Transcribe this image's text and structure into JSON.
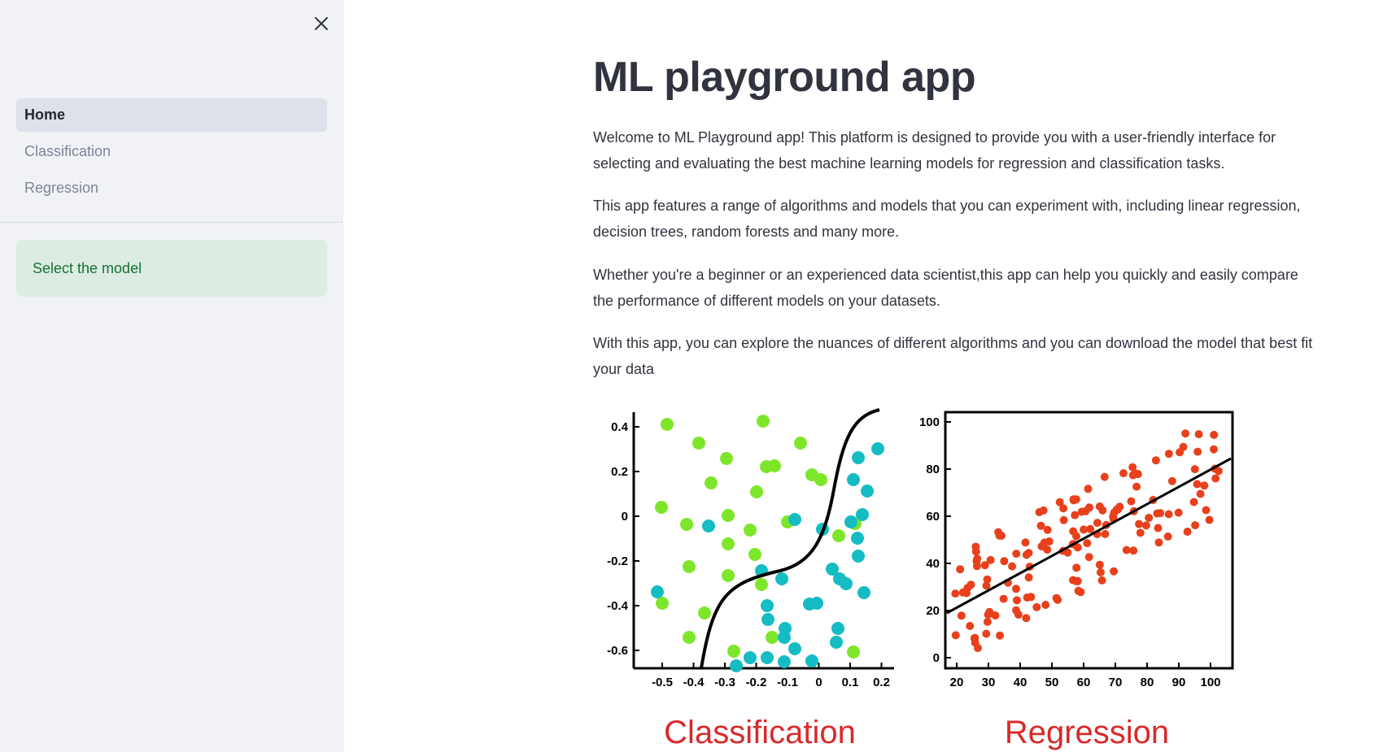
{
  "sidebar": {
    "nav": [
      {
        "label": "Home",
        "active": true
      },
      {
        "label": "Classification",
        "active": false
      },
      {
        "label": "Regression",
        "active": false
      }
    ],
    "alert": "Select the model",
    "close_icon": "close-icon"
  },
  "main": {
    "title": "ML playground app",
    "paragraphs": [
      "Welcome to ML Playground app! This platform is designed to provide you with a user-friendly interface for selecting and evaluating the best machine learning models for regression and classification tasks.",
      "This app features a range of algorithms and models that you can experiment with, including linear regression, decision trees, random forests and many more.",
      "Whether you're a beginner or an experienced data scientist,this app can help you quickly and easily compare the performance of different models on your datasets.",
      "With this app, you can explore the nuances of different algorithms and you can download the model that best fit your data"
    ]
  },
  "figure": {
    "classification": {
      "caption": "Classification",
      "xticks": [
        "-0.5",
        "-0.4",
        "-0.3",
        "-0.2",
        "-0.1",
        "0",
        "0.1",
        "0.2"
      ],
      "yticks": [
        "0.4",
        "0.2",
        "0",
        "-0.2",
        "-0.4",
        "-0.6"
      ],
      "color_a": "#7ee62a",
      "color_b": "#16bcc4"
    },
    "regression": {
      "caption": "Regression",
      "xticks": [
        "20",
        "30",
        "40",
        "50",
        "60",
        "70",
        "80",
        "90",
        "100"
      ],
      "yticks": [
        "100",
        "80",
        "60",
        "40",
        "20",
        "0"
      ],
      "point_color": "#e8401c"
    },
    "caption_color": "#d82a2a"
  }
}
